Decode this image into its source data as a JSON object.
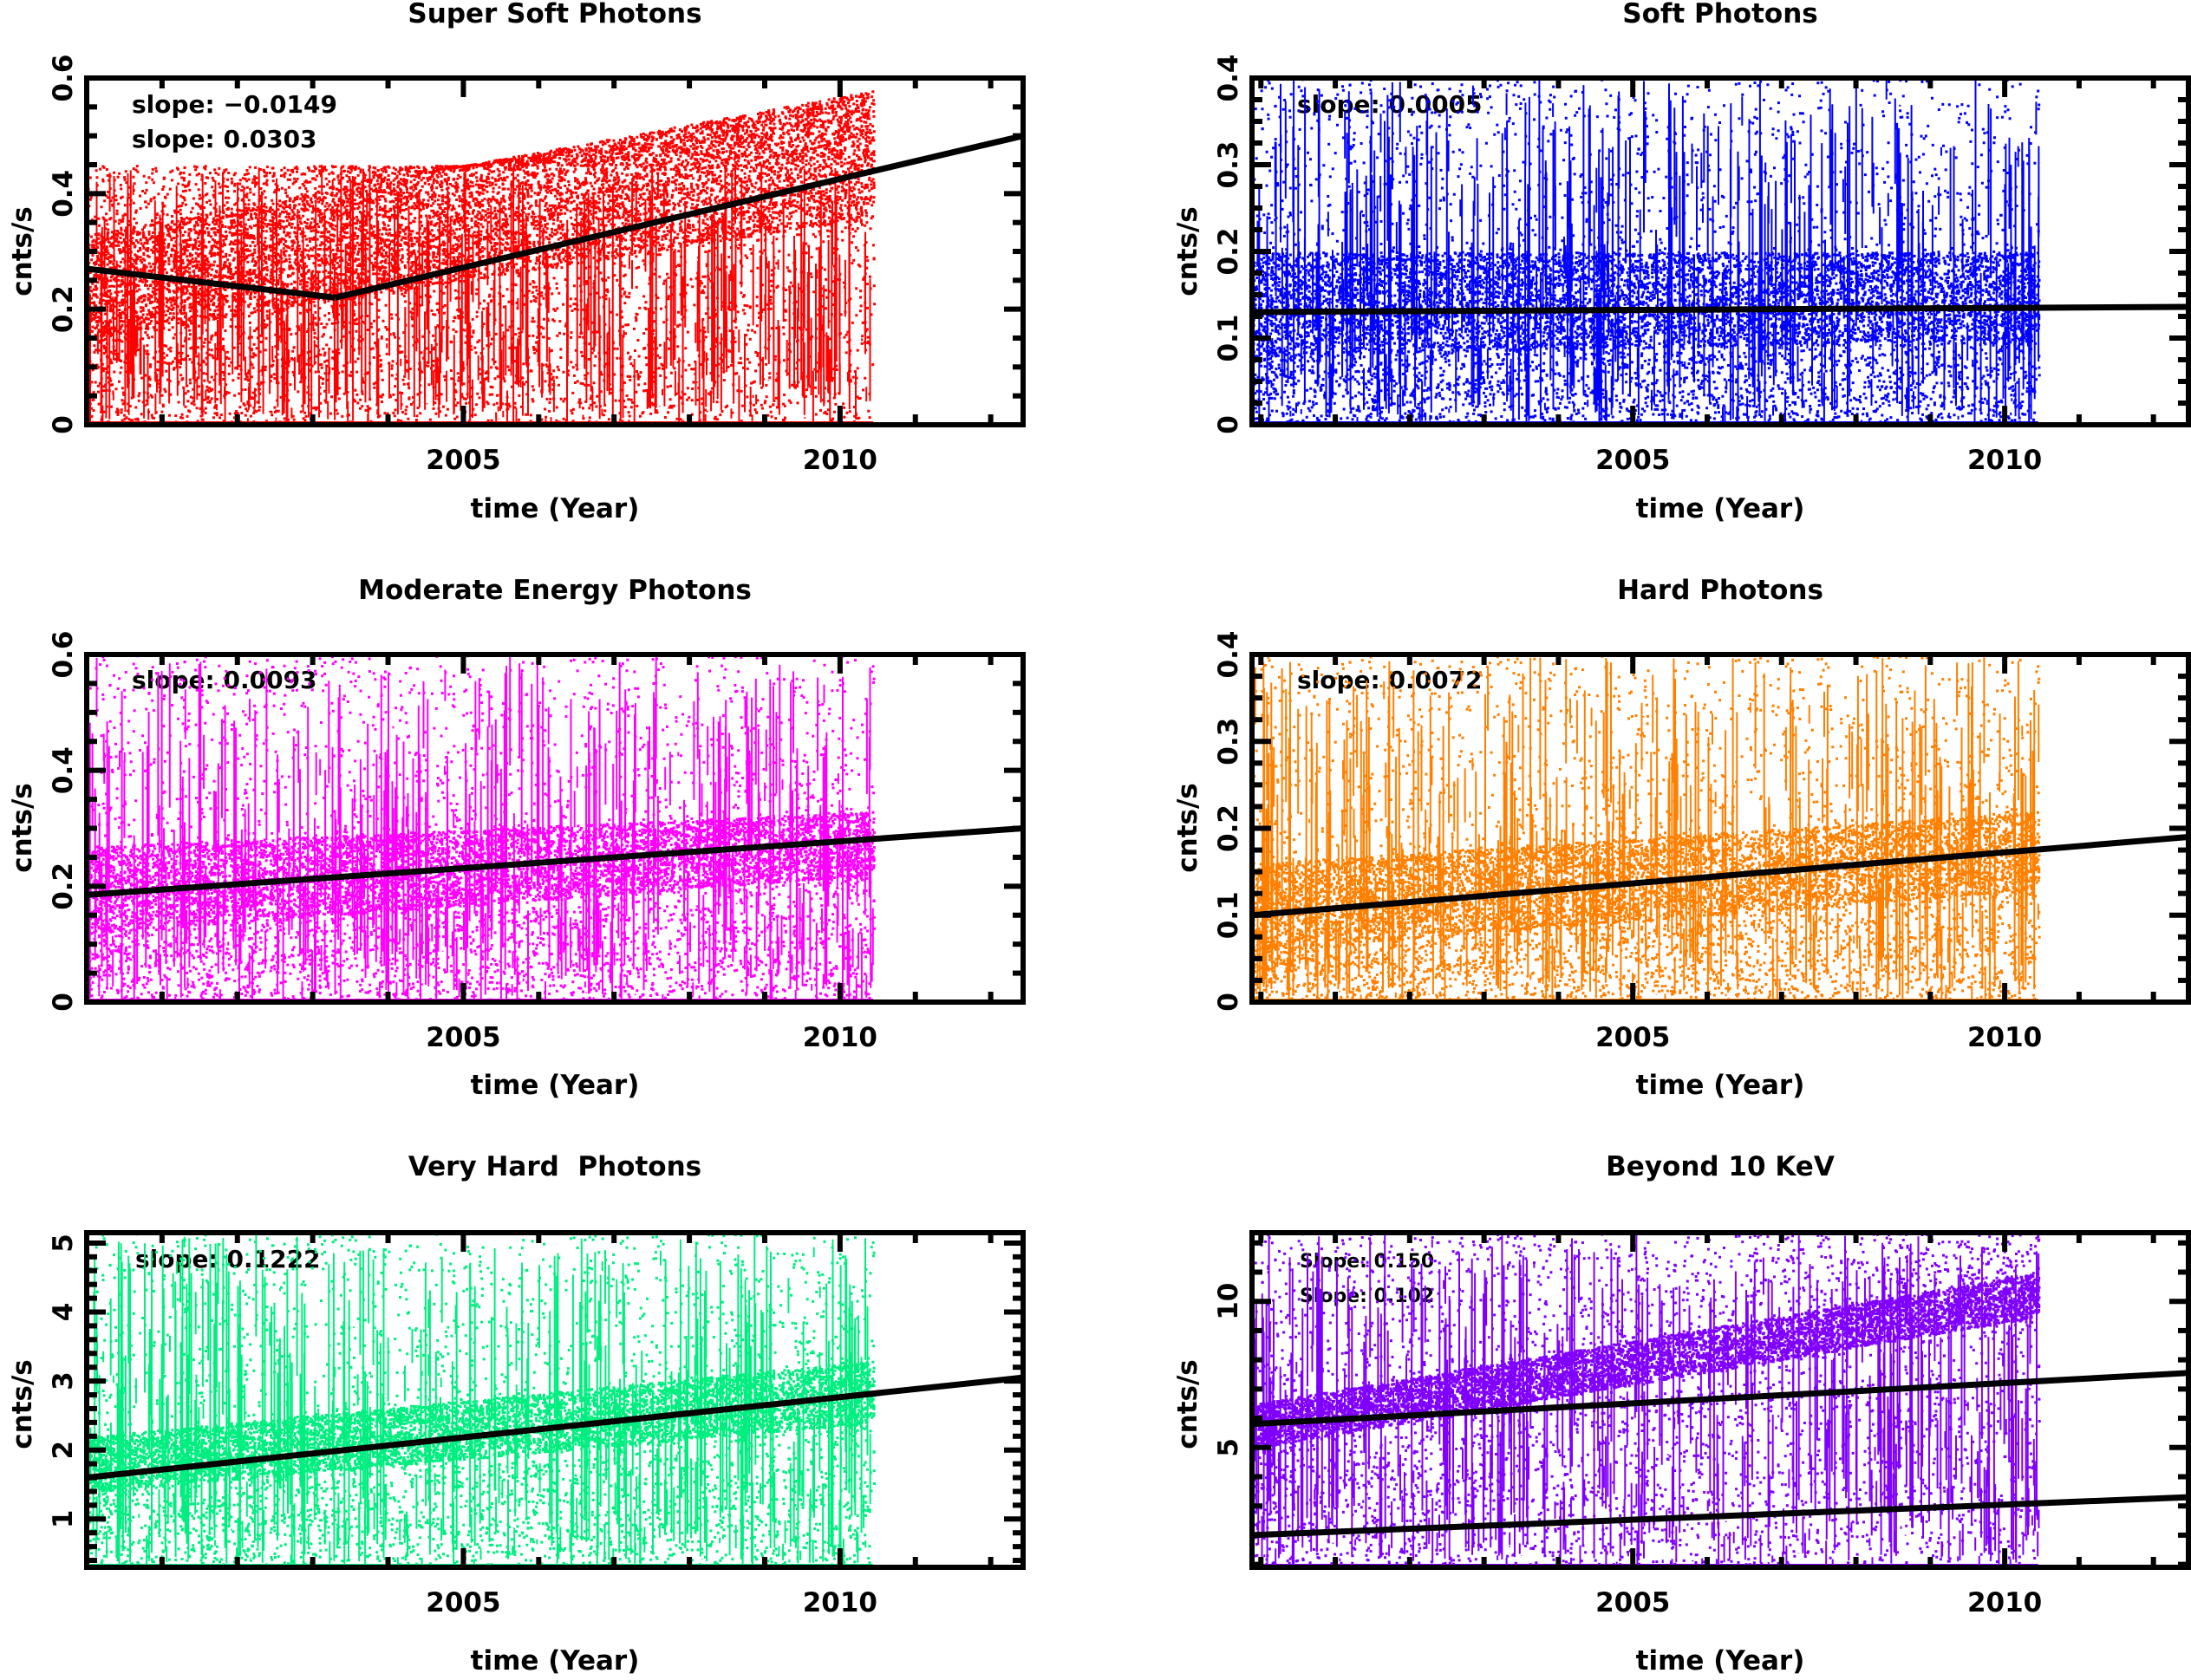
{
  "chart_data": [
    {
      "type": "scatter",
      "title": "Super Soft Photons",
      "xlabel": "time (Year)",
      "ylabel": "cnts/s",
      "xlim": [
        2000.0,
        2012.43
      ],
      "ylim": [
        0,
        0.6
      ],
      "xticks": [
        2005,
        2010
      ],
      "xtick_labels": [
        "2005",
        "2010"
      ],
      "yticks": [
        0,
        0.2,
        0.4,
        0.6
      ],
      "ytick_labels": [
        "0",
        "0.2",
        "0.4",
        "0.6"
      ],
      "point_color": "#ff0000",
      "data_range_x": [
        2000.0,
        2010.44
      ],
      "fit_lines": [
        {
          "x": [
            2000.0,
            2003.3
          ],
          "y": [
            0.27,
            0.22
          ]
        },
        {
          "x": [
            2003.3,
            2012.43
          ],
          "y": [
            0.22,
            0.5
          ]
        }
      ],
      "annotations": [
        "slope: −0.0149",
        "slope: 0.0303"
      ],
      "trend": {
        "start": [
          0.15,
          0.33
        ],
        "end": [
          0.36,
          0.58
        ],
        "spread": 0.45
      }
    },
    {
      "type": "scatter",
      "title": "Soft Photons",
      "xlabel": "time (Year)",
      "ylabel": "cnts/s",
      "xlim": [
        1999.88,
        2012.47
      ],
      "ylim": [
        0,
        0.4
      ],
      "xticks": [
        2005,
        2010
      ],
      "xtick_labels": [
        "2005",
        "2010"
      ],
      "yticks": [
        0,
        0.1,
        0.2,
        0.3,
        0.4
      ],
      "ytick_labels": [
        "0",
        "0.1",
        "0.2",
        "0.3",
        "0.4"
      ],
      "point_color": "#0000ff",
      "data_range_x": [
        1999.88,
        2010.45
      ],
      "fit_lines": [
        {
          "x": [
            1999.88,
            2012.47
          ],
          "y": [
            0.13,
            0.136
          ]
        }
      ],
      "annotations": [
        "slope: 0.0005"
      ],
      "trend": {
        "start": [
          0.08,
          0.2
        ],
        "end": [
          0.1,
          0.2
        ],
        "spread": 0.4
      }
    },
    {
      "type": "scatter",
      "title": "Moderate Energy Photons",
      "xlabel": "time (Year)",
      "ylabel": "cnts/s",
      "xlim": [
        2000.0,
        2012.43
      ],
      "ylim": [
        0,
        0.6
      ],
      "xticks": [
        2005,
        2010
      ],
      "xtick_labels": [
        "2005",
        "2010"
      ],
      "yticks": [
        0,
        0.2,
        0.4,
        0.6
      ],
      "ytick_labels": [
        "0",
        "0.2",
        "0.4",
        "0.6"
      ],
      "point_color": "#ff00ff",
      "data_range_x": [
        2000.0,
        2010.44
      ],
      "fit_lines": [
        {
          "x": [
            2000.0,
            2012.43
          ],
          "y": [
            0.185,
            0.3
          ]
        }
      ],
      "annotations": [
        "slope: 0.0093"
      ],
      "trend": {
        "start": [
          0.12,
          0.27
        ],
        "end": [
          0.22,
          0.33
        ],
        "spread": 0.6
      }
    },
    {
      "type": "scatter",
      "title": "Hard Photons",
      "xlabel": "time (Year)",
      "ylabel": "cnts/s",
      "xlim": [
        1999.88,
        2012.47
      ],
      "ylim": [
        0,
        0.4
      ],
      "xticks": [
        2005,
        2010
      ],
      "xtick_labels": [
        "2005",
        "2010"
      ],
      "yticks": [
        0,
        0.1,
        0.2,
        0.3,
        0.4
      ],
      "ytick_labels": [
        "0",
        "0.1",
        "0.2",
        "0.3",
        "0.4"
      ],
      "point_color": "#ff8000",
      "data_range_x": [
        1999.88,
        2010.45
      ],
      "fit_lines": [
        {
          "x": [
            1999.88,
            2012.47
          ],
          "y": [
            0.1,
            0.19
          ]
        }
      ],
      "annotations": [
        "slope: 0.0072"
      ],
      "trend": {
        "start": [
          0.06,
          0.16
        ],
        "end": [
          0.13,
          0.22
        ],
        "spread": 0.4
      }
    },
    {
      "type": "scatter",
      "title": "Very Hard  Photons",
      "xlabel": "time (Year)",
      "ylabel": "cnts/s",
      "xlim": [
        2000.0,
        2012.43
      ],
      "ylim": [
        0.3,
        5.15
      ],
      "xticks": [
        2005,
        2010
      ],
      "xtick_labels": [
        "2005",
        "2010"
      ],
      "yticks": [
        1,
        2,
        3,
        4,
        5
      ],
      "ytick_labels": [
        "1",
        "2",
        "3",
        "4",
        "5"
      ],
      "point_color": "#00ee80",
      "data_range_x": [
        2000.0,
        2010.44
      ],
      "fit_lines": [
        {
          "x": [
            2000.0,
            2012.43
          ],
          "y": [
            1.6,
            3.05
          ]
        }
      ],
      "annotations": [
        "slope: 0.1222"
      ],
      "trend": {
        "start": [
          1.4,
          2.2
        ],
        "end": [
          2.4,
          3.3
        ],
        "spread": 5.15
      }
    },
    {
      "type": "scatter",
      "title": "Beyond 10 KeV",
      "xlabel": "time (Year)",
      "ylabel": "cnts/s",
      "xlim": [
        1999.88,
        2012.47
      ],
      "ylim": [
        0.9,
        12.35
      ],
      "xticks": [
        2005,
        2010
      ],
      "xtick_labels": [
        "2005",
        "2010"
      ],
      "yticks": [
        5,
        10
      ],
      "ytick_labels": [
        "5",
        "10"
      ],
      "point_color": "#8000ff",
      "data_range_x": [
        1999.88,
        2010.45
      ],
      "fit_lines": [
        {
          "x": [
            1999.88,
            2012.47
          ],
          "y": [
            5.8,
            7.55
          ]
        },
        {
          "x": [
            1999.88,
            2012.47
          ],
          "y": [
            2.0,
            3.3
          ]
        }
      ],
      "annotations": [
        "Slope: 0.150",
        "Slope: 0.102"
      ],
      "trend": {
        "start": [
          5.0,
          6.5
        ],
        "end": [
          9.5,
          11.0
        ],
        "spread": 12.35
      }
    }
  ]
}
